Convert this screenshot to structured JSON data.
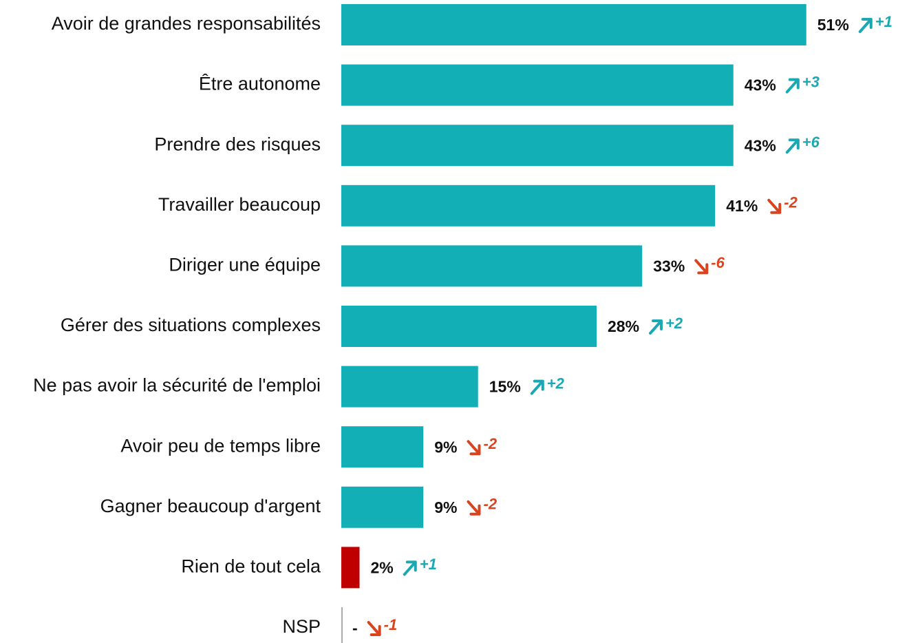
{
  "chart_data": {
    "type": "bar",
    "orientation": "horizontal",
    "categories": [
      "Avoir de grandes responsabilités",
      "Être autonome",
      "Prendre des risques",
      "Travailler beaucoup",
      "Diriger une équipe",
      "Gérer des situations complexes",
      "Ne pas avoir la sécurité de l'emploi",
      "Avoir peu de temps libre",
      "Gagner beaucoup d'argent",
      "Rien de tout cela",
      "NSP"
    ],
    "values": [
      51,
      43,
      43,
      41,
      33,
      28,
      15,
      9,
      9,
      2,
      null
    ],
    "value_labels": [
      "51%",
      "43%",
      "43%",
      "41%",
      "33%",
      "28%",
      "15%",
      "9%",
      "9%",
      "2%",
      "-"
    ],
    "colors": [
      "#13afb7",
      "#13afb7",
      "#13afb7",
      "#13afb7",
      "#13afb7",
      "#13afb7",
      "#13afb7",
      "#13afb7",
      "#13afb7",
      "#c00000",
      "#13afb7"
    ],
    "changes": [
      1,
      3,
      6,
      -2,
      -6,
      2,
      2,
      -2,
      -2,
      1,
      -1
    ],
    "change_labels": [
      "+1",
      "+3",
      "+6",
      "-2",
      "-6",
      "+2",
      "+2",
      "-2",
      "-2",
      "+1",
      "-1"
    ],
    "up_color": "#1aa9b3",
    "down_color": "#d9431e"
  }
}
